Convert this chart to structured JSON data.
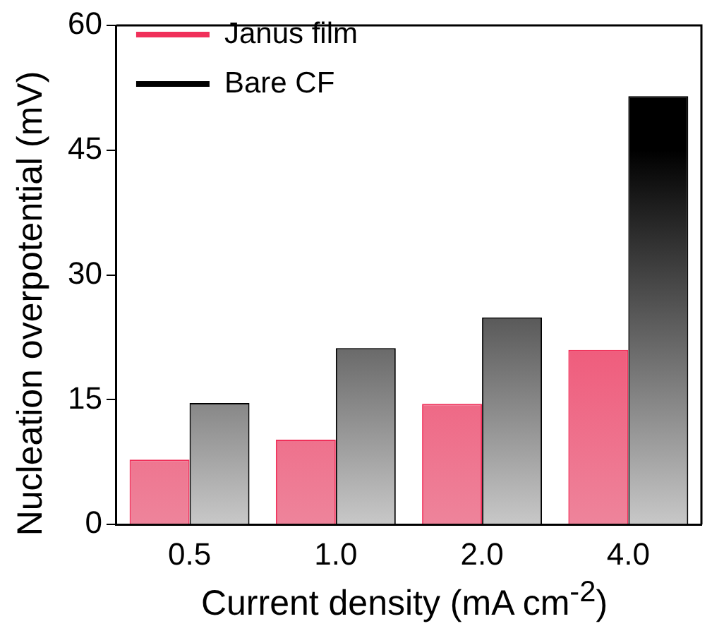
{
  "chart_data": {
    "type": "bar",
    "xlabel": "Current density (mA cm$^{-2}$)",
    "ylabel": "Nucleation overpotential (mV)",
    "categories": [
      "0.5",
      "1.0",
      "2.0",
      "4.0"
    ],
    "series": [
      {
        "name": "Janus film",
        "color": "#f0305a",
        "values": [
          7.8,
          10.2,
          14.5,
          21
        ]
      },
      {
        "name": "Bare CF",
        "color": "#000000",
        "values": [
          14.6,
          21.2,
          24.9,
          51.5
        ]
      }
    ],
    "ylim": [
      0,
      60
    ],
    "yticks": [
      0,
      15,
      30,
      45,
      60
    ],
    "grid": false,
    "legend": "top left"
  }
}
